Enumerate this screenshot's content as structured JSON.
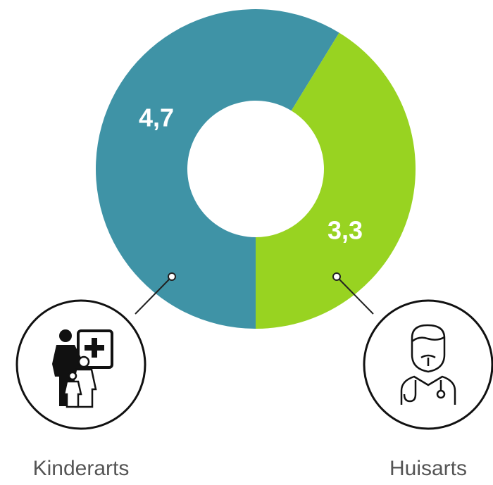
{
  "chart_data": {
    "type": "donut",
    "categories": [
      "Kinderarts",
      "Huisarts"
    ],
    "values": [
      4.7,
      3.3
    ],
    "value_labels": [
      "4,7",
      "3,3"
    ],
    "colors": [
      "#3f93a6",
      "#98d321"
    ]
  }
}
